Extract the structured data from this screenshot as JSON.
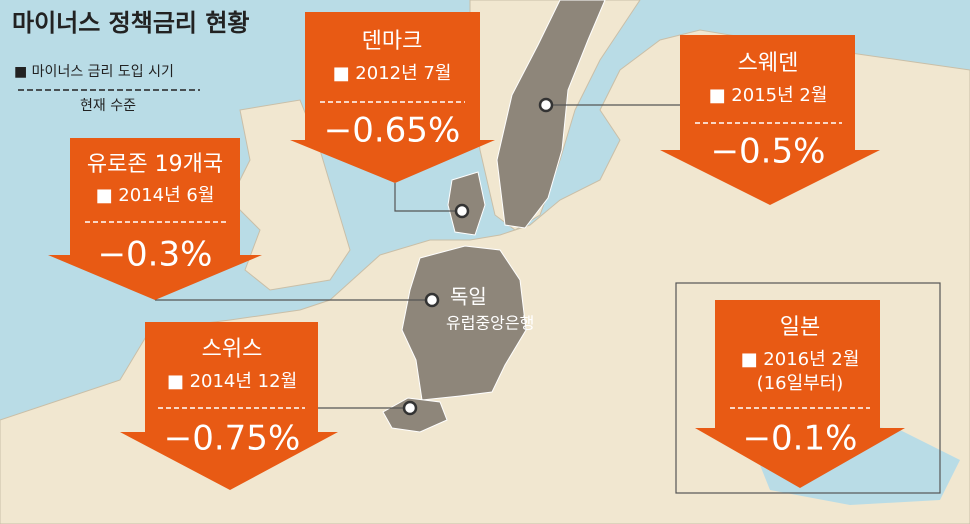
{
  "title": "마이너스 정책금리 현황",
  "legend": {
    "start": "■ 마이너스 금리 도입 시기",
    "current": "현재 수준"
  },
  "callouts": [
    {
      "region": "덴마크",
      "start": "■ 2012년 7월",
      "rate": "−0.65%"
    },
    {
      "region": "스웨덴",
      "start": "■ 2015년 2월",
      "rate": "−0.5%"
    },
    {
      "region": "유로존 19개국",
      "start": "■ 2014년 6월",
      "rate": "−0.3%"
    },
    {
      "region": "스위스",
      "start": "■ 2014년 12월",
      "rate": "−0.75%"
    },
    {
      "region": "일본",
      "start": "■ 2016년 2월",
      "note": "(16일부터)",
      "rate": "−0.1%"
    }
  ],
  "map_labels": {
    "germany": "독일",
    "ecb": "유럽중앙은행"
  }
}
